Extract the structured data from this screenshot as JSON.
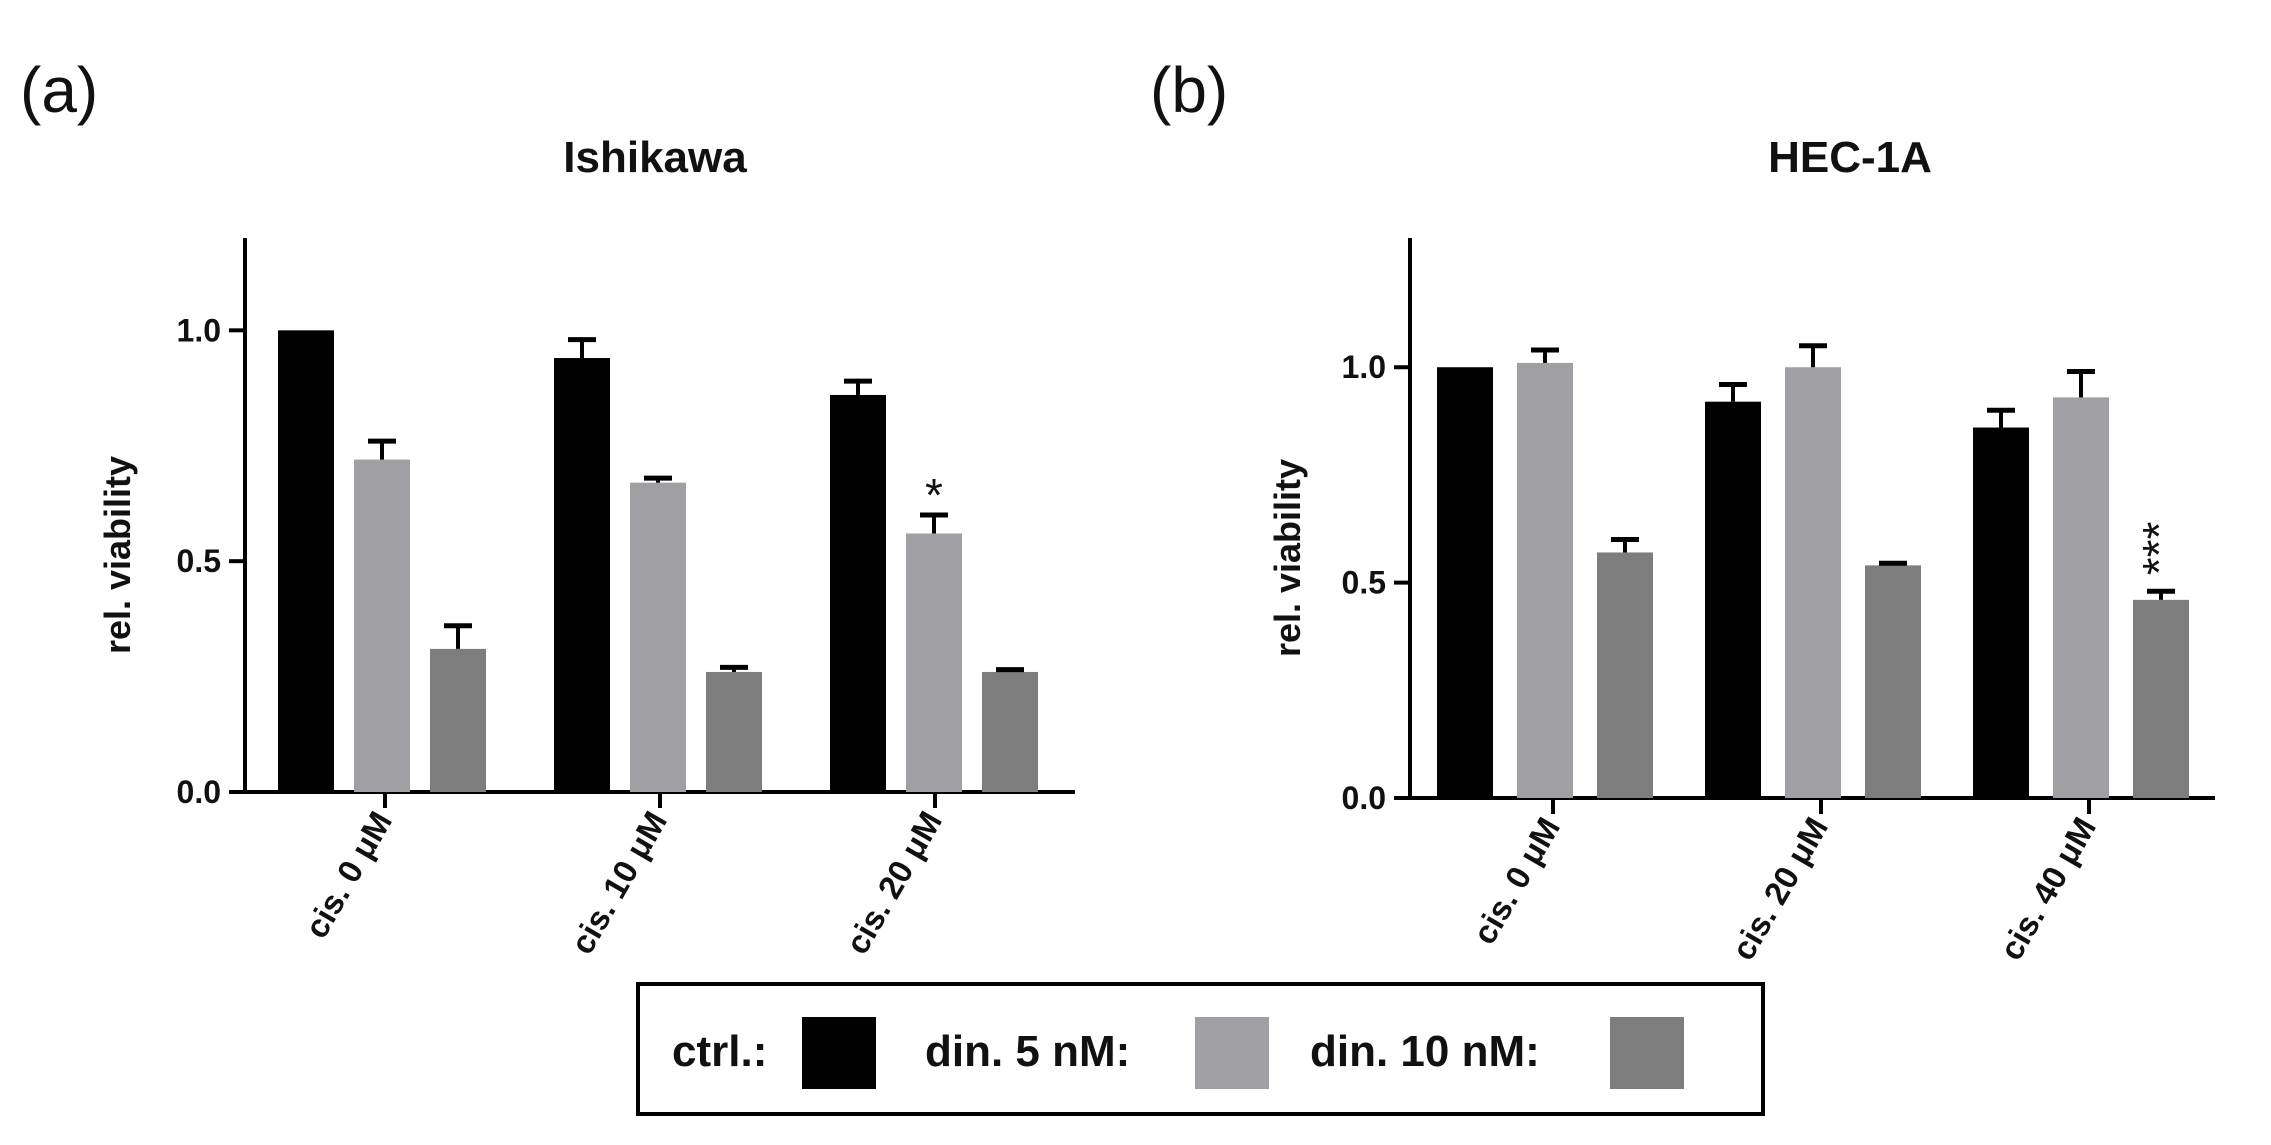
{
  "legend": {
    "items": [
      {
        "label": "ctrl.:",
        "color": "#000000"
      },
      {
        "label": "din. 5 nM:",
        "color": "#a0a0a4"
      },
      {
        "label": "din. 10 nM:",
        "color": "#7d7d7d"
      }
    ]
  },
  "chart_data": [
    {
      "panel": "(a)",
      "type": "bar",
      "title": "Ishikawa",
      "ylabel": "rel. viability",
      "ylim": [
        0,
        1.2
      ],
      "yticks": [
        "0.0",
        "0.5",
        "1.0"
      ],
      "categories": [
        "cis. 0 μM",
        "cis. 10 μM",
        "cis. 20 μM"
      ],
      "series": [
        {
          "name": "ctrl.",
          "color": "#000000",
          "values": [
            1.0,
            0.94,
            0.86
          ],
          "errors": [
            0.0,
            0.04,
            0.03
          ]
        },
        {
          "name": "din. 5 nM",
          "color": "#a0a0a4",
          "values": [
            0.72,
            0.67,
            0.56
          ],
          "errors": [
            0.04,
            0.01,
            0.04
          ]
        },
        {
          "name": "din. 10 nM",
          "color": "#7d7d7d",
          "values": [
            0.31,
            0.26,
            0.26
          ],
          "errors": [
            0.05,
            0.01,
            0.005
          ]
        }
      ],
      "annotations": [
        {
          "text": "*",
          "category": 2,
          "series": 1
        }
      ]
    },
    {
      "panel": "(b)",
      "type": "bar",
      "title": "HEC-1A",
      "ylabel": "rel. viability",
      "ylim": [
        0,
        1.3
      ],
      "yticks": [
        "0.0",
        "0.5",
        "1.0"
      ],
      "categories": [
        "cis. 0 μM",
        "cis. 20 μM",
        "cis. 40 μM"
      ],
      "series": [
        {
          "name": "ctrl.",
          "color": "#000000",
          "values": [
            1.0,
            0.92,
            0.86
          ],
          "errors": [
            0.0,
            0.04,
            0.04
          ]
        },
        {
          "name": "din. 5 nM",
          "color": "#a0a0a4",
          "values": [
            1.01,
            1.0,
            0.93
          ],
          "errors": [
            0.03,
            0.05,
            0.06
          ]
        },
        {
          "name": "din. 10 nM",
          "color": "#7d7d7d",
          "values": [
            0.57,
            0.54,
            0.46
          ],
          "errors": [
            0.03,
            0.005,
            0.02
          ]
        }
      ],
      "annotations": [
        {
          "text": "***",
          "category": 2,
          "series": 2
        }
      ]
    }
  ]
}
